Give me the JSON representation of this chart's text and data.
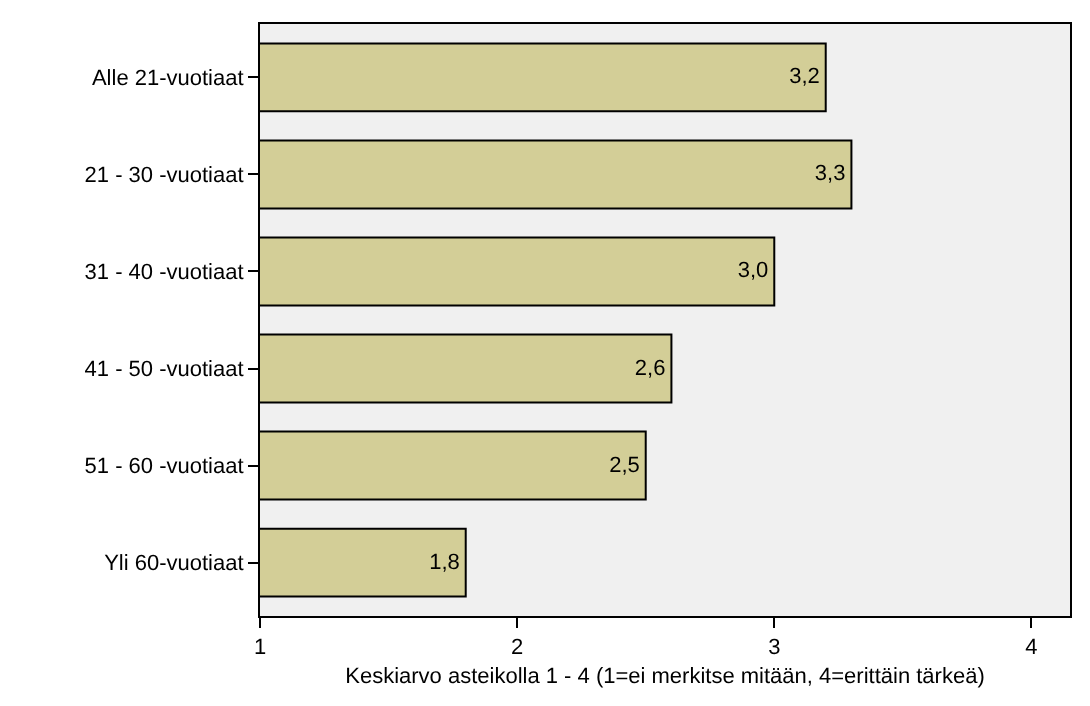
{
  "chart_data": {
    "type": "bar",
    "orientation": "horizontal",
    "xlabel": "Keskiarvo asteikolla 1 - 4 (1=ei merkitse mitään, 4=erittäin tärkeä)",
    "categories": [
      "Alle 21-vuotiaat",
      "21 - 30 -vuotiaat",
      "31 - 40 -vuotiaat",
      "41 - 50 -vuotiaat",
      "51 - 60 -vuotiaat",
      "Yli 60-vuotiaat"
    ],
    "values": [
      3.2,
      3.3,
      3.0,
      2.6,
      2.5,
      1.8
    ],
    "value_labels": [
      "3,2",
      "3,3",
      "3,0",
      "2,6",
      "2,5",
      "1,8"
    ],
    "color": "#d3ce97",
    "xlim": [
      1,
      4.15
    ],
    "xticks": [
      1,
      2,
      3,
      4
    ],
    "grid": false,
    "legend": false
  }
}
